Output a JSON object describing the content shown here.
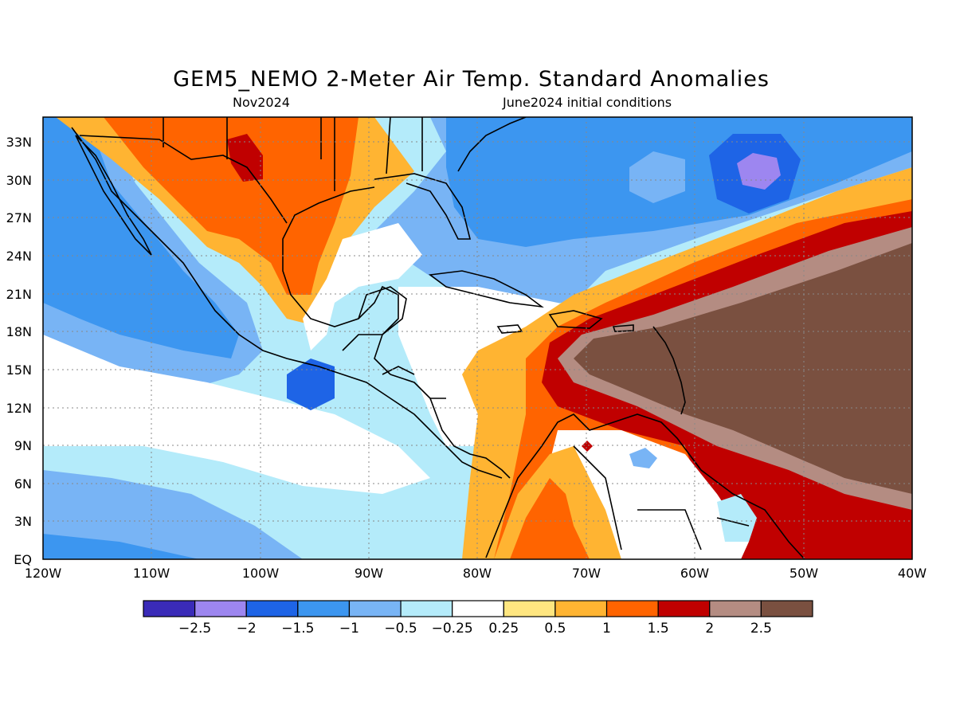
{
  "header": {
    "title": "GEM5_NEMO 2-Meter Air Temp. Standard Anomalies",
    "subtitle_left": "Nov2024",
    "subtitle_right": "June2024 initial conditions"
  },
  "axes": {
    "lat_labels": [
      "33N",
      "30N",
      "27N",
      "24N",
      "21N",
      "18N",
      "15N",
      "12N",
      "9N",
      "6N",
      "3N",
      "EQ"
    ],
    "lon_labels": [
      "120W",
      "110W",
      "100W",
      "90W",
      "80W",
      "70W",
      "60W",
      "50W",
      "40W"
    ],
    "lat_range": [
      0,
      35
    ],
    "lon_range": [
      -120,
      -40
    ]
  },
  "colorbar": {
    "colors": [
      "#3a2bb8",
      "#9d86f0",
      "#1e64e6",
      "#3c96f0",
      "#78b4f5",
      "#b4ebfa",
      "#ffffff",
      "#ffe680",
      "#ffb432",
      "#ff6400",
      "#c00000",
      "#b48c82",
      "#7a5040"
    ],
    "labels": [
      "-2.5",
      "-2",
      "-1.5",
      "-1",
      "-0.5",
      "-0.25",
      "0.25",
      "0.5",
      "1",
      "1.5",
      "2",
      "2.5"
    ]
  },
  "map_data": {
    "type": "anomaly_map",
    "region": "Caribbean / Central America / Gulf of Mexico",
    "features": [
      {
        "name": "warm anomaly Mexico/Texas",
        "level": 1.5
      },
      {
        "name": "cold anomaly western Atlantic",
        "level": -1.5
      },
      {
        "name": "strong warm anomaly tropical Atlantic",
        "level": 2.5
      },
      {
        "name": "cold anomaly eastern Pacific",
        "level": -1
      }
    ]
  }
}
